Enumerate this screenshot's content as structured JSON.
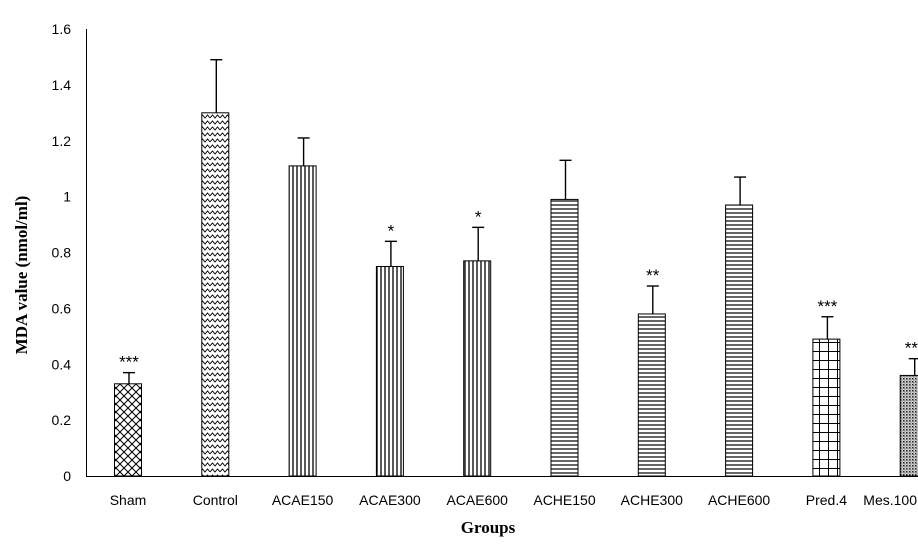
{
  "chart_data": {
    "type": "bar",
    "title": "",
    "xlabel": "Groups",
    "ylabel": "MDA value  (nmol/ml)",
    "ylim": [
      0,
      1.6
    ],
    "yticks": [
      "0",
      "0.2",
      "0.4",
      "0.6",
      "0.8",
      "1",
      "1.2",
      "1.4",
      "1.6"
    ],
    "grid": false,
    "legend": "none",
    "bar_color": "#000000",
    "categories": [
      "Sham",
      "Control",
      "ACAE150",
      "ACAE300",
      "ACAE600",
      "ACHE150",
      "ACHE300",
      "ACHE600",
      "Pred.4",
      "Mes.100"
    ],
    "values": [
      0.33,
      1.3,
      1.11,
      0.75,
      0.77,
      0.99,
      0.58,
      0.97,
      0.49,
      0.36
    ],
    "errors": [
      0.04,
      0.19,
      0.1,
      0.09,
      0.12,
      0.14,
      0.1,
      0.1,
      0.08,
      0.06
    ],
    "significance": [
      "***",
      "",
      "",
      "*",
      "*",
      "",
      "**",
      "",
      "***",
      "***"
    ],
    "patterns": [
      "diamond-hatch",
      "zigzag",
      "vertical-lines",
      "vertical-lines",
      "vertical-lines",
      "horizontal-lines",
      "horizontal-lines",
      "horizontal-lines",
      "grid",
      "dots"
    ]
  }
}
